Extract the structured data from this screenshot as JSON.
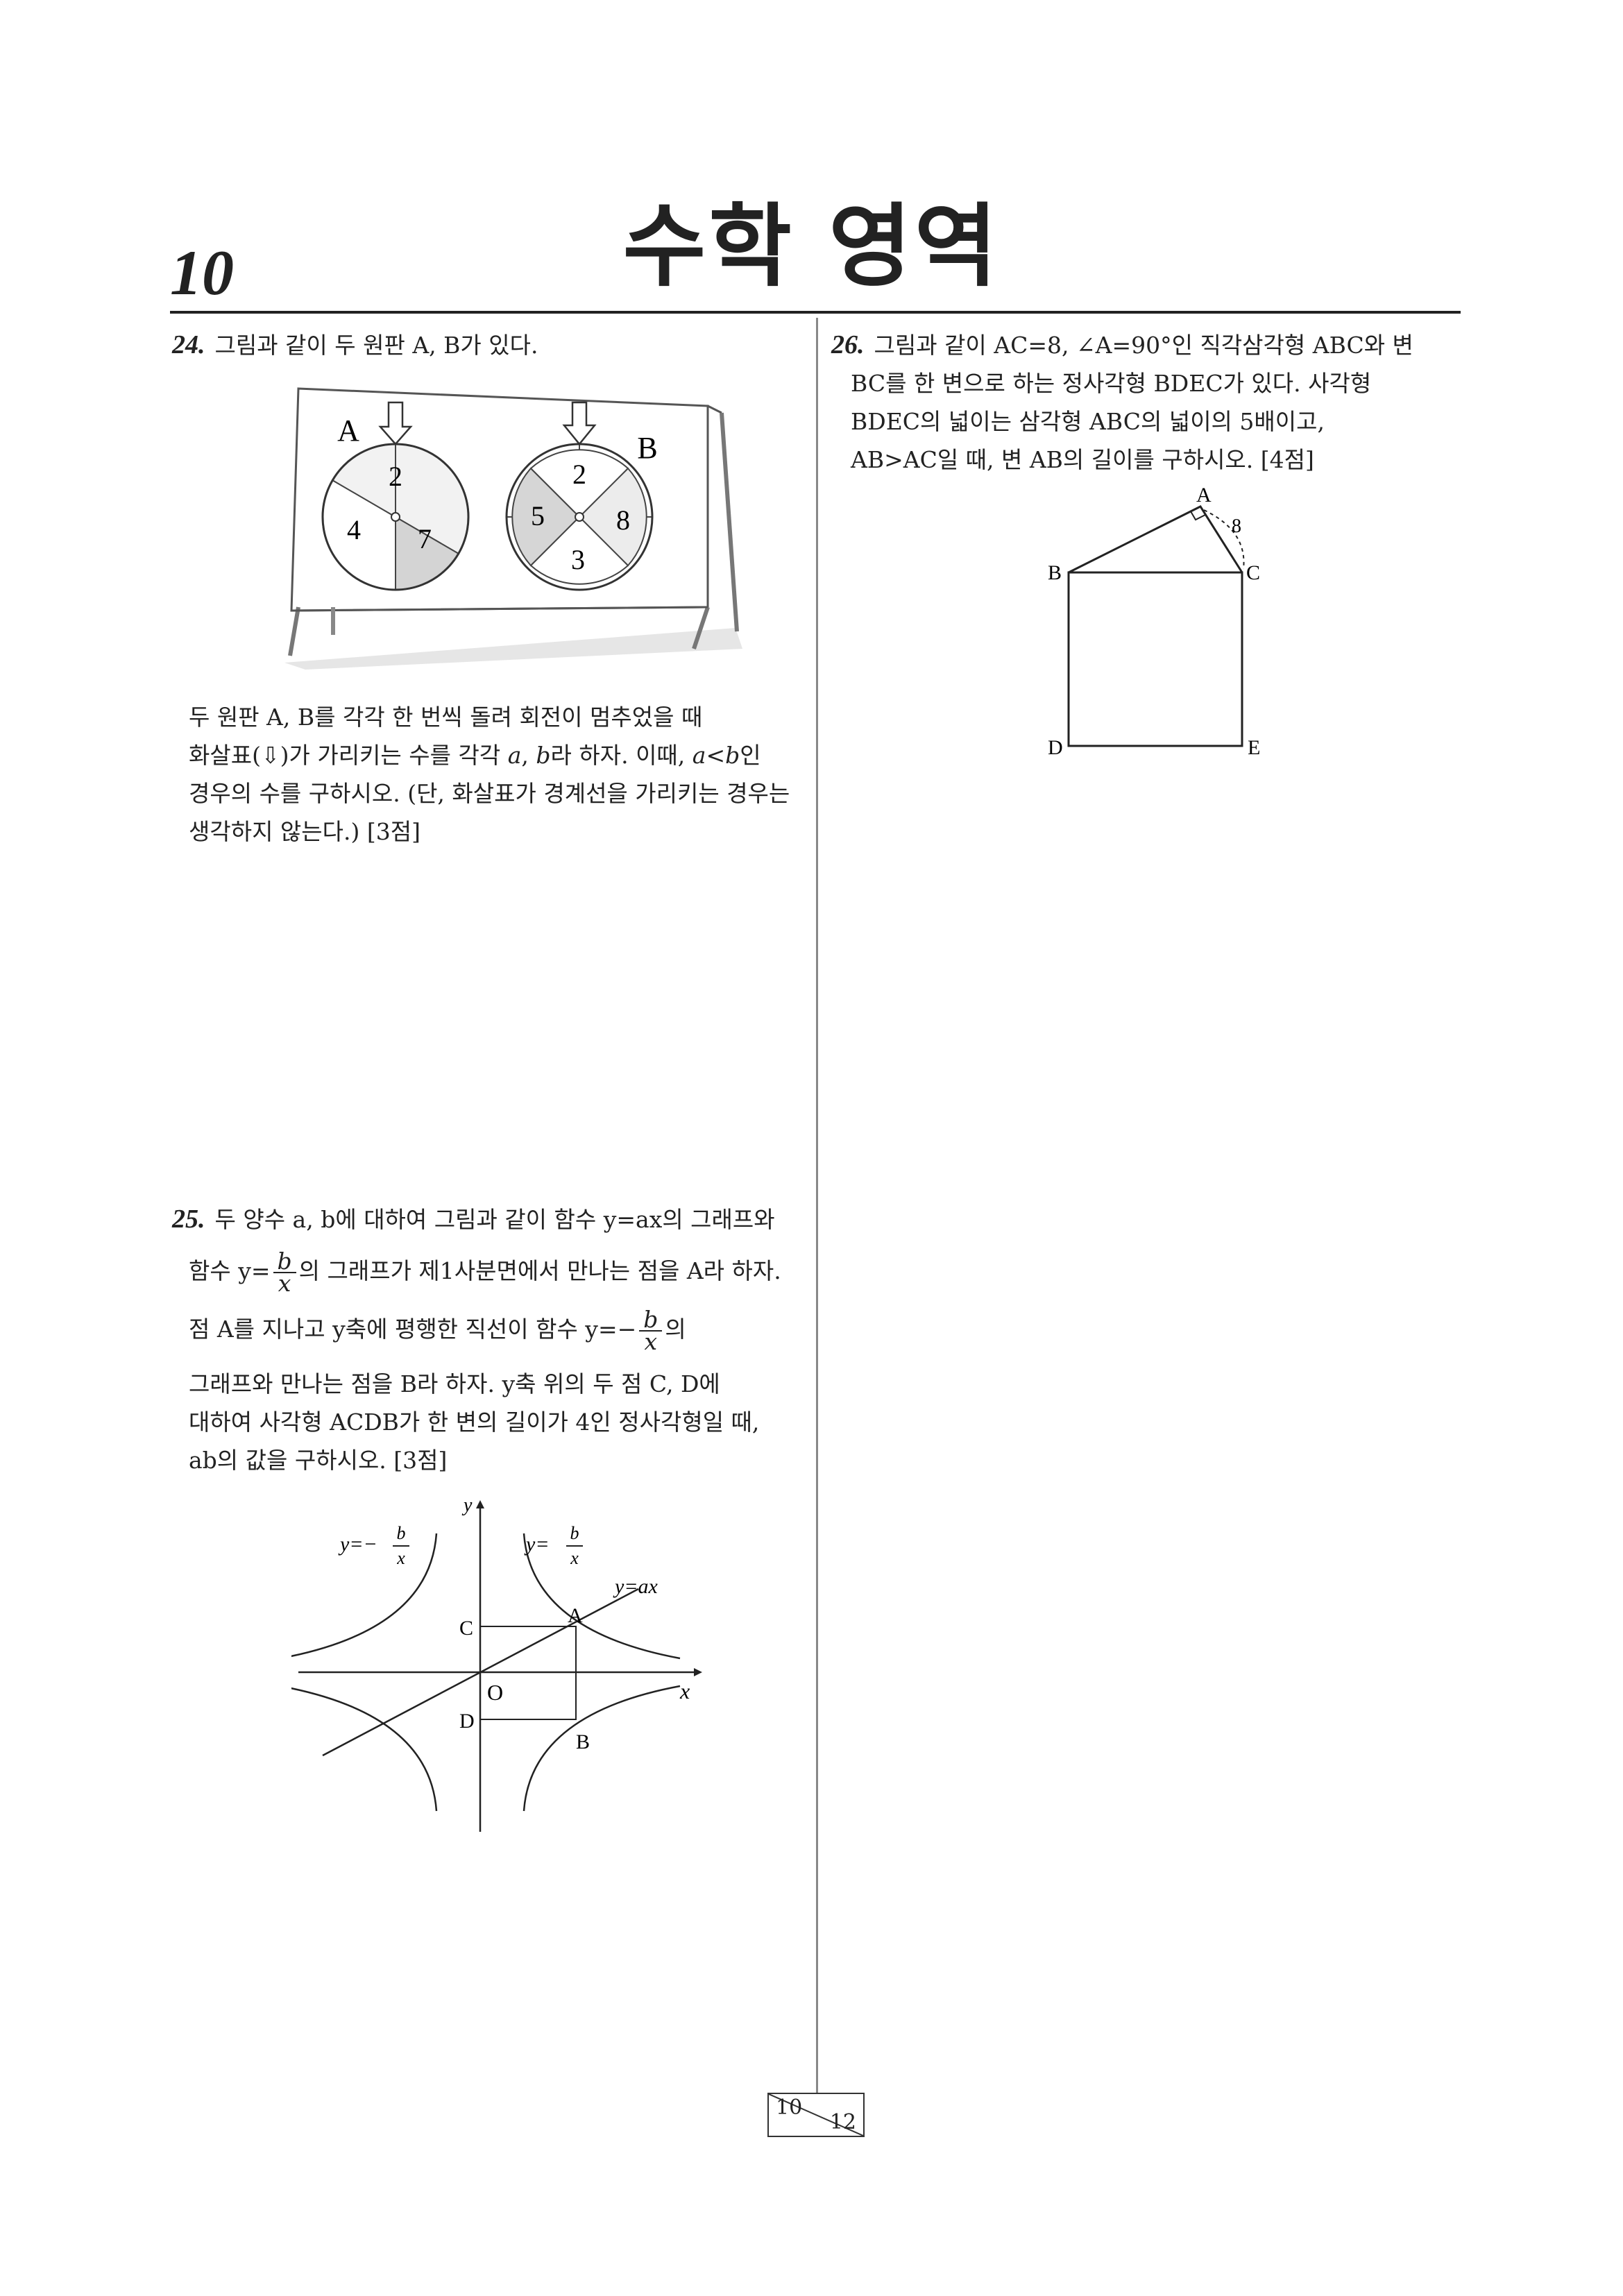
{
  "header": {
    "page_number": "10",
    "title": "수학 영역"
  },
  "q24": {
    "number": "24.",
    "stem": "그림과 같이 두 원판 A, B가 있다.",
    "body_line1": "두 원판 A, B를 각각 한 번씩 돌려 회전이 멈추었을 때",
    "body_line2_a": "화살표(⇩)가 가리키는 수를 각각",
    "var_a": "a",
    "sep1": ",",
    "var_b": "b",
    "body_line2_b": "라 하자. 이때,",
    "cond": "a<b",
    "body_line2_c": "인",
    "body_line3": "경우의 수를 구하시오. (단, 화살표가 경계선을 가리키는 경우는",
    "body_line4": "생각하지 않는다.) [3점]",
    "disk_a": {
      "label": "A",
      "numbers": [
        "2",
        "4",
        "7"
      ]
    },
    "disk_b": {
      "label": "B",
      "numbers": [
        "2",
        "5",
        "8",
        "3"
      ]
    }
  },
  "q25": {
    "number": "25.",
    "line1": "두 양수 a, b에 대하여 그림과 같이 함수 y=ax의 그래프와",
    "line2_a": "함수 y=",
    "frac_num": "b",
    "frac_den": "x",
    "line2_b": "의 그래프가 제1사분면에서 만나는 점을 A라 하자.",
    "line3_a": "점 A를 지나고 y축에 평행한 직선이 함수 y=−",
    "line3_b": "의",
    "line4": "그래프와 만나는 점을 B라 하자. y축 위의 두 점 C, D에",
    "line5": "대하여 사각형 ACDB가 한 변의 길이가 4인 정사각형일 때,",
    "line6": "ab의 값을 구하시오. [3점]",
    "graph": {
      "label_neg": "y=−",
      "label_pos": "y=",
      "label_line": "y=ax",
      "axis_x": "x",
      "axis_y": "y",
      "origin": "O",
      "points": [
        "A",
        "B",
        "C",
        "D"
      ]
    }
  },
  "q26": {
    "number": "26.",
    "line1": "그림과 같이 AC=8, ∠A=90°인 직각삼각형 ABC와 변",
    "line2": "BC를 한 변으로 하는 정사각형 BDEC가 있다. 사각형",
    "line3": "BDEC의 넓이는 삼각형 ABC의 넓이의 5배이고,",
    "line4": "AB>AC일 때, 변 AB의 길이를 구하시오. [4점]",
    "figure": {
      "A": "A",
      "B": "B",
      "C": "C",
      "D": "D",
      "E": "E",
      "side": "8"
    }
  },
  "footer": {
    "current": "10",
    "total": "12"
  }
}
